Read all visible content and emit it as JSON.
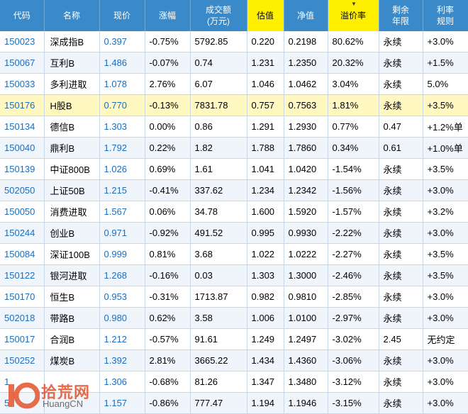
{
  "columns": [
    "代码",
    "名称",
    "现价",
    "涨幅",
    "成交额\n(万元)",
    "估值",
    "净值",
    "溢价率",
    "剩余\n年限",
    "利率\n规则"
  ],
  "rows": [
    {
      "code": "150023",
      "name": "深成指B",
      "price": "0.397",
      "change": "-0.75%",
      "amount": "5792.85",
      "est": "0.220",
      "nav": "0.2198",
      "premium": "80.62%",
      "remain": "永续",
      "rate": "+3.0%"
    },
    {
      "code": "150067",
      "name": "互利B",
      "price": "1.486",
      "change": "-0.07%",
      "amount": "0.74",
      "est": "1.231",
      "nav": "1.2350",
      "premium": "20.32%",
      "remain": "永续",
      "rate": "+1.5%"
    },
    {
      "code": "150033",
      "name": "多利进取",
      "price": "1.078",
      "change": "2.76%",
      "amount": "6.07",
      "est": "1.046",
      "nav": "1.0462",
      "premium": "3.04%",
      "remain": "永续",
      "rate": "5.0%"
    },
    {
      "code": "150176",
      "name": "H股B",
      "price": "0.770",
      "change": "-0.13%",
      "amount": "7831.78",
      "est": "0.757",
      "nav": "0.7563",
      "premium": "1.81%",
      "remain": "永续",
      "rate": "+3.5%"
    },
    {
      "code": "150134",
      "name": "德信B",
      "price": "1.303",
      "change": "0.00%",
      "amount": "0.86",
      "est": "1.291",
      "nav": "1.2930",
      "premium": "0.77%",
      "remain": "0.47",
      "rate": "+1.2%单"
    },
    {
      "code": "150040",
      "name": "鼎利B",
      "price": "1.792",
      "change": "0.22%",
      "amount": "1.82",
      "est": "1.788",
      "nav": "1.7860",
      "premium": "0.34%",
      "remain": "0.61",
      "rate": "+1.0%单"
    },
    {
      "code": "150139",
      "name": "中证800B",
      "price": "1.026",
      "change": "0.69%",
      "amount": "1.61",
      "est": "1.041",
      "nav": "1.0420",
      "premium": "-1.54%",
      "remain": "永续",
      "rate": "+3.5%"
    },
    {
      "code": "502050",
      "name": "上证50B",
      "price": "1.215",
      "change": "-0.41%",
      "amount": "337.62",
      "est": "1.234",
      "nav": "1.2342",
      "premium": "-1.56%",
      "remain": "永续",
      "rate": "+3.0%"
    },
    {
      "code": "150050",
      "name": "消费进取",
      "price": "1.567",
      "change": "0.06%",
      "amount": "34.78",
      "est": "1.600",
      "nav": "1.5920",
      "premium": "-1.57%",
      "remain": "永续",
      "rate": "+3.2%"
    },
    {
      "code": "150244",
      "name": "创业B",
      "price": "0.971",
      "change": "-0.92%",
      "amount": "491.52",
      "est": "0.995",
      "nav": "0.9930",
      "premium": "-2.22%",
      "remain": "永续",
      "rate": "+3.0%"
    },
    {
      "code": "150084",
      "name": "深证100B",
      "price": "0.999",
      "change": "0.81%",
      "amount": "3.68",
      "est": "1.022",
      "nav": "1.0222",
      "premium": "-2.27%",
      "remain": "永续",
      "rate": "+3.5%"
    },
    {
      "code": "150122",
      "name": "银河进取",
      "price": "1.268",
      "change": "-0.16%",
      "amount": "0.03",
      "est": "1.303",
      "nav": "1.3000",
      "premium": "-2.46%",
      "remain": "永续",
      "rate": "+3.5%"
    },
    {
      "code": "150170",
      "name": "恒生B",
      "price": "0.953",
      "change": "-0.31%",
      "amount": "1713.87",
      "est": "0.982",
      "nav": "0.9810",
      "premium": "-2.85%",
      "remain": "永续",
      "rate": "+3.0%"
    },
    {
      "code": "502018",
      "name": "带路B",
      "price": "0.980",
      "change": "0.62%",
      "amount": "3.58",
      "est": "1.006",
      "nav": "1.0100",
      "premium": "-2.97%",
      "remain": "永续",
      "rate": "+3.0%"
    },
    {
      "code": "150017",
      "name": "合润B",
      "price": "1.212",
      "change": "-0.57%",
      "amount": "91.61",
      "est": "1.249",
      "nav": "1.2497",
      "premium": "-3.02%",
      "remain": "2.45",
      "rate": "无约定"
    },
    {
      "code": "150252",
      "name": "煤炭B",
      "price": "1.392",
      "change": "2.81%",
      "amount": "3665.22",
      "est": "1.434",
      "nav": "1.4360",
      "premium": "-3.06%",
      "remain": "永续",
      "rate": "+3.0%"
    },
    {
      "code": "1",
      "name": "",
      "price": "1.306",
      "change": "-0.68%",
      "amount": "81.26",
      "est": "1.347",
      "nav": "1.3480",
      "premium": "-3.12%",
      "remain": "永续",
      "rate": "+3.0%"
    },
    {
      "code": "5",
      "name": "",
      "price": "1.157",
      "change": "-0.86%",
      "amount": "777.47",
      "est": "1.194",
      "nav": "1.1946",
      "premium": "-3.15%",
      "remain": "永续",
      "rate": "+3.0%"
    }
  ],
  "watermark": {
    "title": "拾荒网",
    "subtitle": "HuangCN",
    "logo_text": "10"
  },
  "colors": {
    "header_bg": "#3a89c9",
    "highlight_header": "#fff000",
    "selected_row": "#fff8c0",
    "up": "#e21b1b",
    "down": "#0a8a0a",
    "code": "#1a6fc0",
    "watermark_accent": "#e3522b"
  }
}
